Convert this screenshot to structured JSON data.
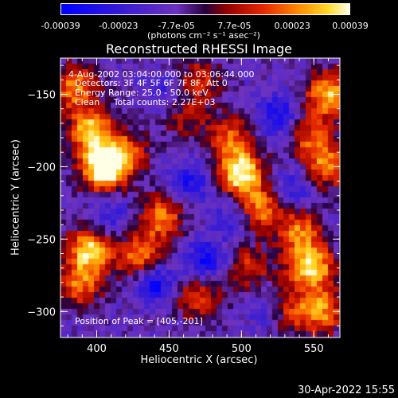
{
  "chart_data": {
    "type": "heatmap",
    "title": "Reconstructed RHESSI Image",
    "xlabel": "Heliocentric X (arcsec)",
    "ylabel": "Heliocentric Y (arcsec)",
    "xlim": [
      375,
      568
    ],
    "ylim": [
      -318,
      -125
    ],
    "x_ticks": [
      400,
      450,
      500,
      550
    ],
    "y_ticks": [
      -150,
      -200,
      -250,
      -300
    ],
    "colorbar": {
      "ticks": [
        "-0.00039",
        "-0.00023",
        "-7.7e-05",
        "7.7e-05",
        "0.00023",
        "0.00039"
      ],
      "range": [
        -0.00039,
        0.00039
      ],
      "unit_label": "(photons cm⁻² s⁻¹ asec⁻²)"
    },
    "annotations": [
      "4-Aug-2002 03:04:00.000 to 03:06:44.000",
      "Detectors: 3F 4F 5F 6F 7F 8F, Att 0",
      "Energy Range: 25.0 - 50.0 keV",
      "Clean     Total counts: 2.27E+03"
    ],
    "peak_label": "Position of Peak = [405,-201]",
    "blobs": [
      {
        "x": 405,
        "y": -201,
        "v": 1.0
      },
      {
        "x": 396,
        "y": -175,
        "v": 0.7
      },
      {
        "x": 385,
        "y": -145,
        "v": 0.6
      },
      {
        "x": 420,
        "y": -190,
        "v": 0.45
      },
      {
        "x": 445,
        "y": -235,
        "v": 0.55
      },
      {
        "x": 430,
        "y": -262,
        "v": 0.6
      },
      {
        "x": 395,
        "y": -258,
        "v": 0.75
      },
      {
        "x": 388,
        "y": -282,
        "v": 0.5
      },
      {
        "x": 470,
        "y": -290,
        "v": 0.45
      },
      {
        "x": 500,
        "y": -205,
        "v": 0.85
      },
      {
        "x": 512,
        "y": -230,
        "v": 0.6
      },
      {
        "x": 492,
        "y": -180,
        "v": 0.5
      },
      {
        "x": 540,
        "y": -245,
        "v": 0.55
      },
      {
        "x": 548,
        "y": -270,
        "v": 0.8
      },
      {
        "x": 555,
        "y": -300,
        "v": 0.6
      },
      {
        "x": 560,
        "y": -150,
        "v": 0.7
      },
      {
        "x": 560,
        "y": -200,
        "v": 0.55
      },
      {
        "x": 548,
        "y": -180,
        "v": 0.45
      },
      {
        "x": 470,
        "y": -140,
        "v": 0.4
      },
      {
        "x": 505,
        "y": -270,
        "v": 0.4
      },
      {
        "x": 460,
        "y": -165,
        "v": 0.35
      },
      {
        "x": 530,
        "y": -300,
        "v": 0.45
      }
    ],
    "cold_spots": [
      {
        "x": 440,
        "y": -280,
        "v": 0.6
      },
      {
        "x": 475,
        "y": -265,
        "v": 0.55
      },
      {
        "x": 465,
        "y": -210,
        "v": 0.45
      },
      {
        "x": 495,
        "y": -235,
        "v": 0.4
      },
      {
        "x": 525,
        "y": -165,
        "v": 0.5
      },
      {
        "x": 450,
        "y": -150,
        "v": 0.35
      },
      {
        "x": 520,
        "y": -300,
        "v": 0.4
      },
      {
        "x": 410,
        "y": -235,
        "v": 0.3
      },
      {
        "x": 535,
        "y": -215,
        "v": 0.35
      }
    ]
  },
  "timestamp": "30-Apr-2022 15:55"
}
